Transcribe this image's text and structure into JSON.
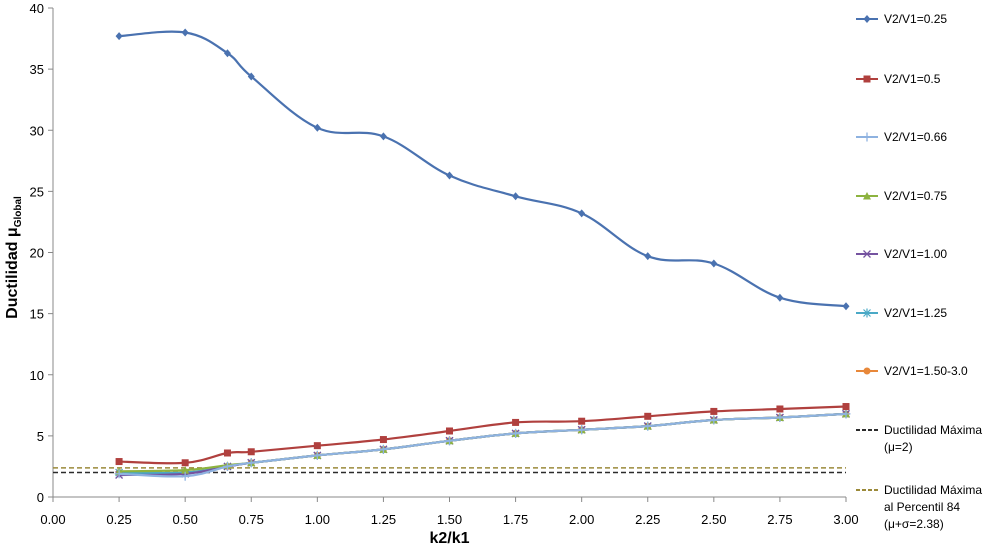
{
  "chart_data": {
    "type": "line",
    "xlabel": "k2/k1",
    "ylabel": "Ductilidad μ",
    "ylabel_sub": "Global",
    "xlim": [
      0,
      3
    ],
    "ylim": [
      0,
      40
    ],
    "xticks": [
      "0.00",
      "0.25",
      "0.50",
      "0.75",
      "1.00",
      "1.25",
      "1.50",
      "1.75",
      "2.00",
      "2.25",
      "2.50",
      "2.75",
      "3.00"
    ],
    "yticks": [
      "0",
      "5",
      "10",
      "15",
      "20",
      "25",
      "30",
      "35",
      "40"
    ],
    "grid": false,
    "legend_position": "right",
    "x": [
      0.25,
      0.5,
      0.66,
      0.75,
      1.0,
      1.25,
      1.5,
      1.75,
      2.0,
      2.25,
      2.5,
      2.75,
      3.0
    ],
    "series": [
      {
        "name": "V2/V1=0.25",
        "color": "#4a72b0",
        "marker": "diamond",
        "values": [
          37.7,
          38.0,
          36.3,
          34.4,
          30.2,
          29.5,
          26.3,
          24.6,
          23.2,
          19.7,
          19.1,
          16.3,
          15.6
        ]
      },
      {
        "name": "V2/V1=0.5",
        "color": "#b0403e",
        "marker": "square",
        "values": [
          2.9,
          2.8,
          3.6,
          3.7,
          4.2,
          4.7,
          5.4,
          6.1,
          6.2,
          6.6,
          7.0,
          7.2,
          7.4
        ]
      },
      {
        "name": "V2/V1=0.66",
        "color": "#8eb2e0",
        "marker": "plus",
        "values": [
          1.9,
          1.7,
          2.5,
          2.8,
          3.4,
          3.9,
          4.6,
          5.2,
          5.5,
          5.8,
          6.3,
          6.5,
          6.8
        ]
      },
      {
        "name": "V2/V1=0.75",
        "color": "#8db33f",
        "marker": "triangle",
        "values": [
          2.1,
          2.2,
          2.6,
          2.8,
          3.4,
          3.9,
          4.6,
          5.2,
          5.5,
          5.8,
          6.3,
          6.5,
          6.8
        ]
      },
      {
        "name": "V2/V1=1.00",
        "color": "#7553a0",
        "marker": "x",
        "values": [
          1.8,
          1.9,
          2.5,
          2.8,
          3.4,
          3.9,
          4.6,
          5.2,
          5.5,
          5.8,
          6.3,
          6.5,
          6.8
        ]
      },
      {
        "name": "V2/V1=1.25",
        "color": "#4aa9c6",
        "marker": "star",
        "values": [
          2.0,
          2.0,
          2.5,
          2.8,
          3.4,
          3.9,
          4.6,
          5.2,
          5.5,
          5.8,
          6.3,
          6.5,
          6.8
        ]
      },
      {
        "name": "V2/V1=1.50-3.0",
        "color": "#e8883a",
        "marker": "circle",
        "values": [
          2.0,
          2.0,
          2.5,
          2.8,
          3.4,
          3.9,
          4.6,
          5.2,
          5.5,
          5.8,
          6.3,
          6.5,
          6.8
        ]
      }
    ],
    "reference_lines": [
      {
        "name_lines": [
          "Ductilidad Máxima",
          "(μ=2)"
        ],
        "value": 2.0,
        "color": "#2b2b2b",
        "style": "dashed"
      },
      {
        "name_lines": [
          "Ductilidad Máxima",
          "al Percentil 84",
          "(μ+σ=2.38)"
        ],
        "value": 2.38,
        "color": "#9b8a3a",
        "style": "dashed"
      }
    ]
  }
}
